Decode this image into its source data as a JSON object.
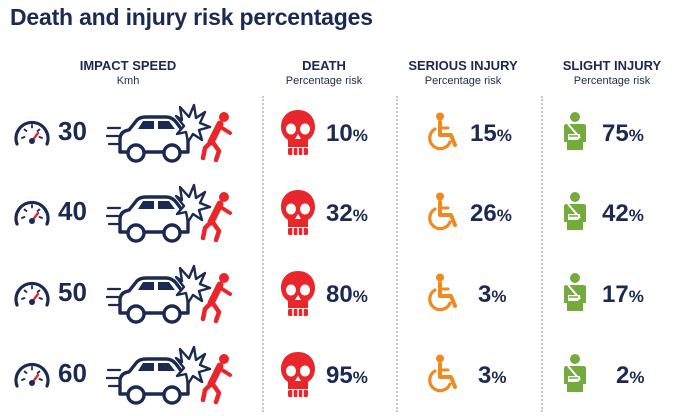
{
  "title": "Death and injury risk percentages",
  "columns": {
    "speed": {
      "label": "IMPACT SPEED",
      "sub": "Kmh"
    },
    "death": {
      "label": "DEATH",
      "sub": "Percentage risk"
    },
    "serious": {
      "label": "SERIOUS INJURY",
      "sub": "Percentage risk"
    },
    "slight": {
      "label": "SLIGHT INJURY",
      "sub": "Percentage risk"
    }
  },
  "percent_sign": "%",
  "rows": [
    {
      "speed": "30",
      "death": "10",
      "serious": "15",
      "slight": "75"
    },
    {
      "speed": "40",
      "death": "32",
      "serious": "26",
      "slight": "42"
    },
    {
      "speed": "50",
      "death": "80",
      "serious": "3",
      "slight": "17"
    },
    {
      "speed": "60",
      "death": "95",
      "serious": "3",
      "slight": "2"
    }
  ],
  "colors": {
    "navy": "#1b2a52",
    "death": "#e8262b",
    "serious": "#f08a1e",
    "slight": "#74ab3c",
    "pedestrian": "#e8262b"
  },
  "icons": {
    "gauge": "speedometer-icon",
    "crash": "car-hits-pedestrian-icon",
    "death": "skull-icon",
    "serious": "wheelchair-icon",
    "slight": "arm-sling-icon"
  }
}
